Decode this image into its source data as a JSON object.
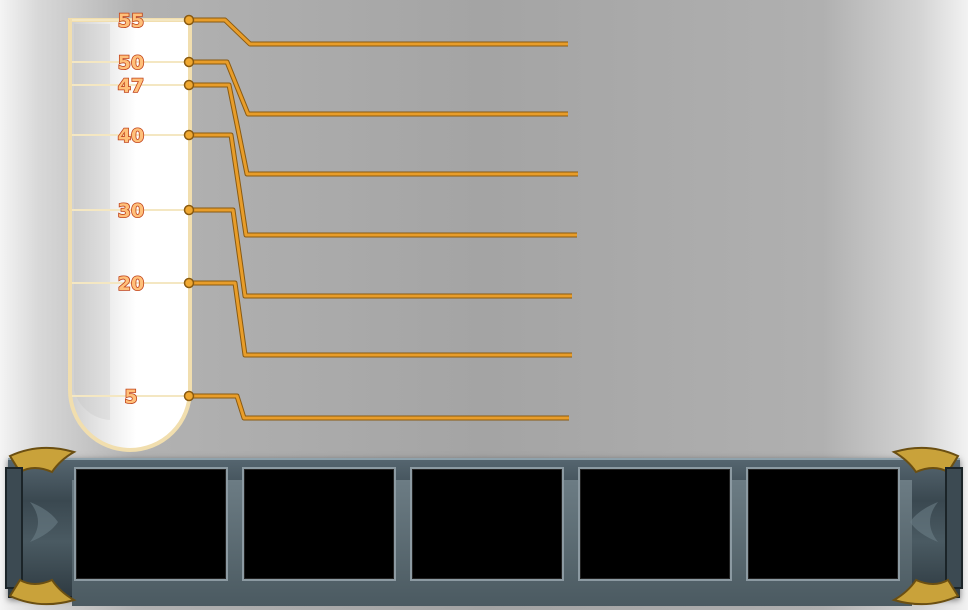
{
  "cylinder": {
    "ticks": [
      {
        "label": "55",
        "value": 55
      },
      {
        "label": "50",
        "value": 50
      },
      {
        "label": "47",
        "value": 47
      },
      {
        "label": "40",
        "value": 40
      },
      {
        "label": "30",
        "value": 30
      },
      {
        "label": "20",
        "value": 20
      },
      {
        "label": "5",
        "value": 5
      }
    ]
  },
  "colors": {
    "leader_line": "#e89d2a",
    "leader_dark": "#8a5a10",
    "cylinder_rim": "#f1deae",
    "label_fill": "#ffc07a",
    "label_stroke": "#c0421a"
  },
  "inventory": {
    "slots": [
      {
        "name": "slot-1"
      },
      {
        "name": "slot-2"
      },
      {
        "name": "slot-3"
      },
      {
        "name": "slot-4"
      },
      {
        "name": "slot-5"
      }
    ]
  }
}
